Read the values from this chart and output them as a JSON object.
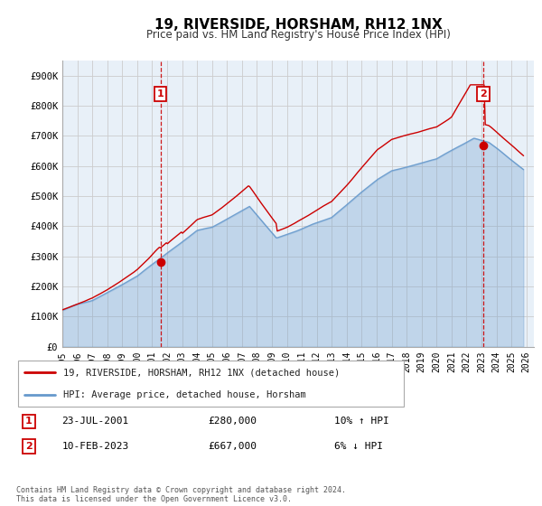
{
  "title": "19, RIVERSIDE, HORSHAM, RH12 1NX",
  "subtitle": "Price paid vs. HM Land Registry's House Price Index (HPI)",
  "legend_label_red": "19, RIVERSIDE, HORSHAM, RH12 1NX (detached house)",
  "legend_label_blue": "HPI: Average price, detached house, Horsham",
  "marker1_date": "23-JUL-2001",
  "marker1_price": "£280,000",
  "marker1_hpi": "10% ↑ HPI",
  "marker1_x": 2001.55,
  "marker1_y": 280000,
  "marker2_date": "10-FEB-2023",
  "marker2_price": "£667,000",
  "marker2_hpi": "6% ↓ HPI",
  "marker2_x": 2023.12,
  "marker2_y": 667000,
  "vline1_x": 2001.55,
  "vline2_x": 2023.12,
  "xlim": [
    1995.0,
    2026.5
  ],
  "ylim": [
    0,
    950000
  ],
  "yticks": [
    0,
    100000,
    200000,
    300000,
    400000,
    500000,
    600000,
    700000,
    800000,
    900000
  ],
  "ytick_labels": [
    "£0",
    "£100K",
    "£200K",
    "£300K",
    "£400K",
    "£500K",
    "£600K",
    "£700K",
    "£800K",
    "£900K"
  ],
  "xticks": [
    1995,
    1996,
    1997,
    1998,
    1999,
    2000,
    2001,
    2002,
    2003,
    2004,
    2005,
    2006,
    2007,
    2008,
    2009,
    2010,
    2011,
    2012,
    2013,
    2014,
    2015,
    2016,
    2017,
    2018,
    2019,
    2020,
    2021,
    2022,
    2023,
    2024,
    2025,
    2026
  ],
  "red_color": "#cc0000",
  "blue_color": "#6699cc",
  "vline_color": "#cc0000",
  "grid_color": "#cccccc",
  "bg_color": "#e8f0f8",
  "plot_bg": "#ffffff",
  "footer_text": "Contains HM Land Registry data © Crown copyright and database right 2024.\nThis data is licensed under the Open Government Licence v3.0."
}
